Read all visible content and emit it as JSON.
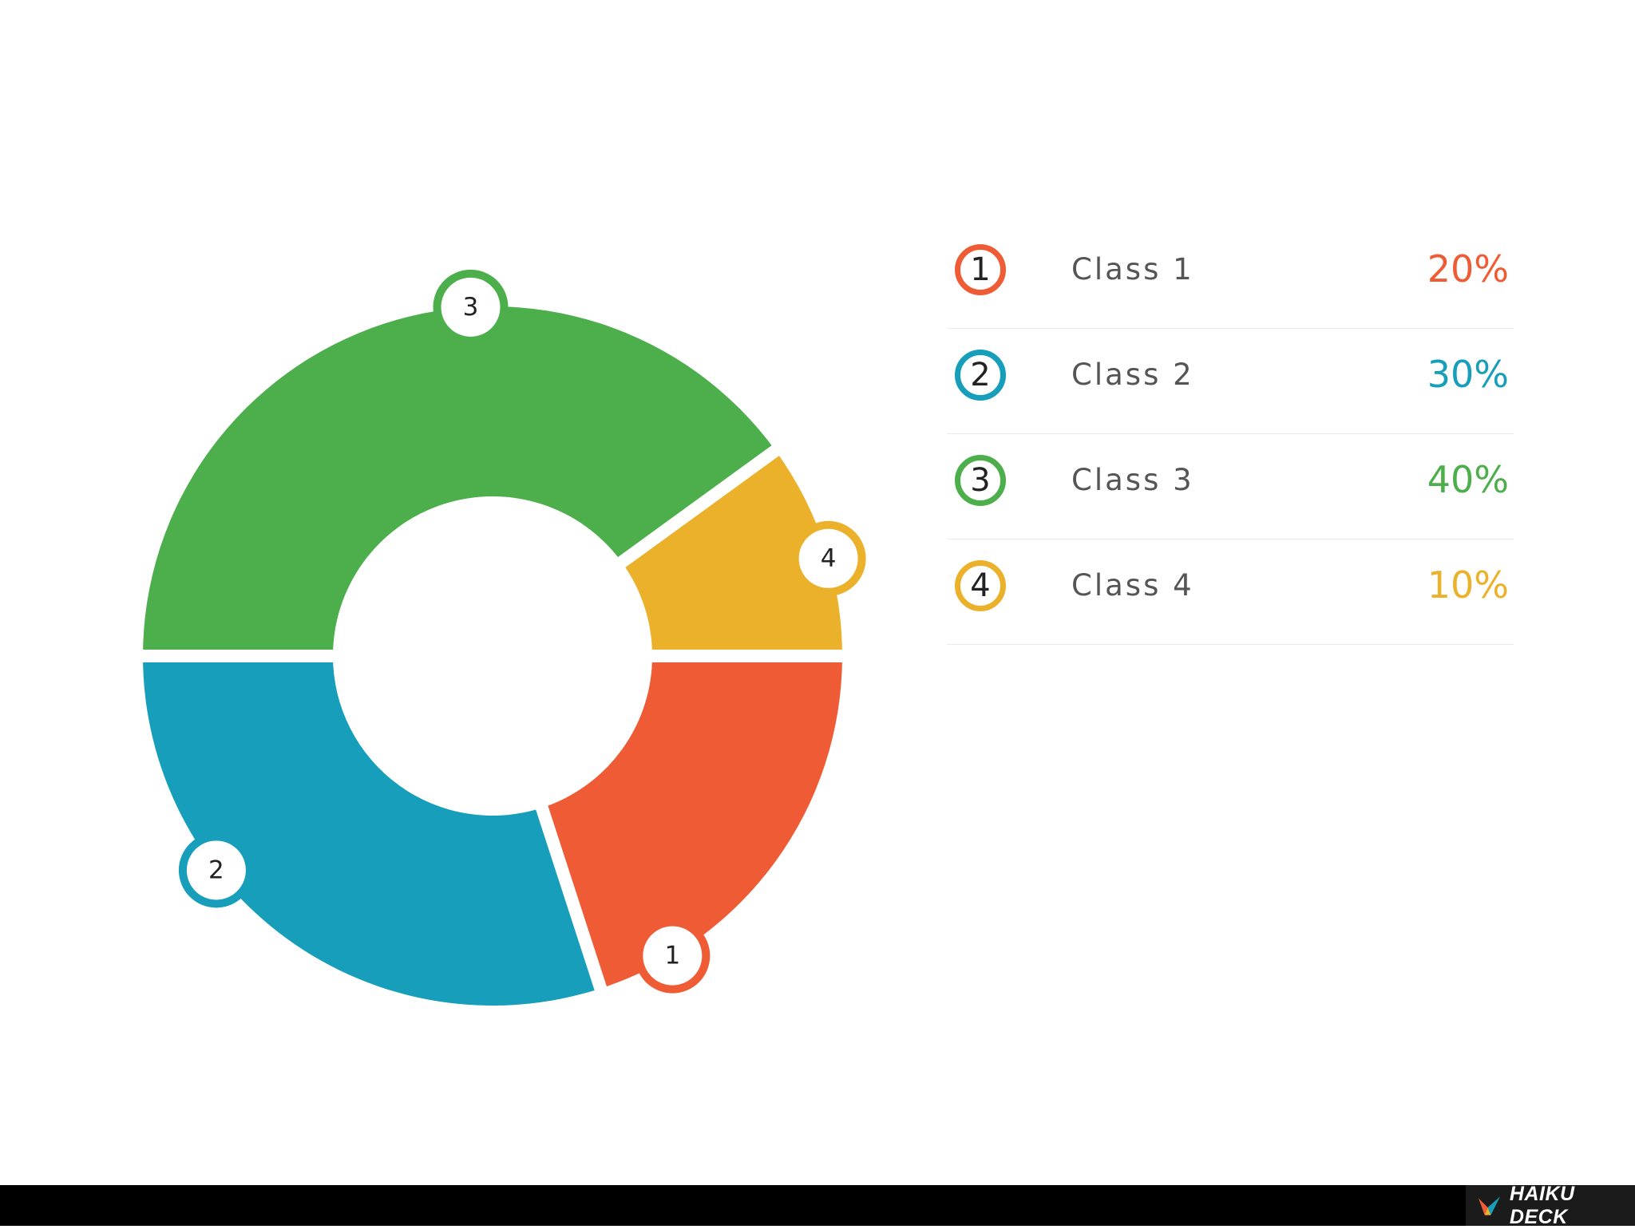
{
  "chart_data": {
    "type": "pie",
    "title": "",
    "categories": [
      "Class 1",
      "Class 2",
      "Class 3",
      "Class 4"
    ],
    "values": [
      20,
      30,
      40,
      10
    ],
    "value_labels": [
      "20%",
      "30%",
      "40%",
      "10%"
    ],
    "slice_numbers": [
      "1",
      "2",
      "3",
      "4"
    ],
    "colors": [
      "#ef5b34",
      "#169ebb",
      "#4caf4b",
      "#ecb12b"
    ],
    "donut": true,
    "legend_position": "right"
  },
  "footer": {
    "brand": "HAIKU DECK"
  }
}
